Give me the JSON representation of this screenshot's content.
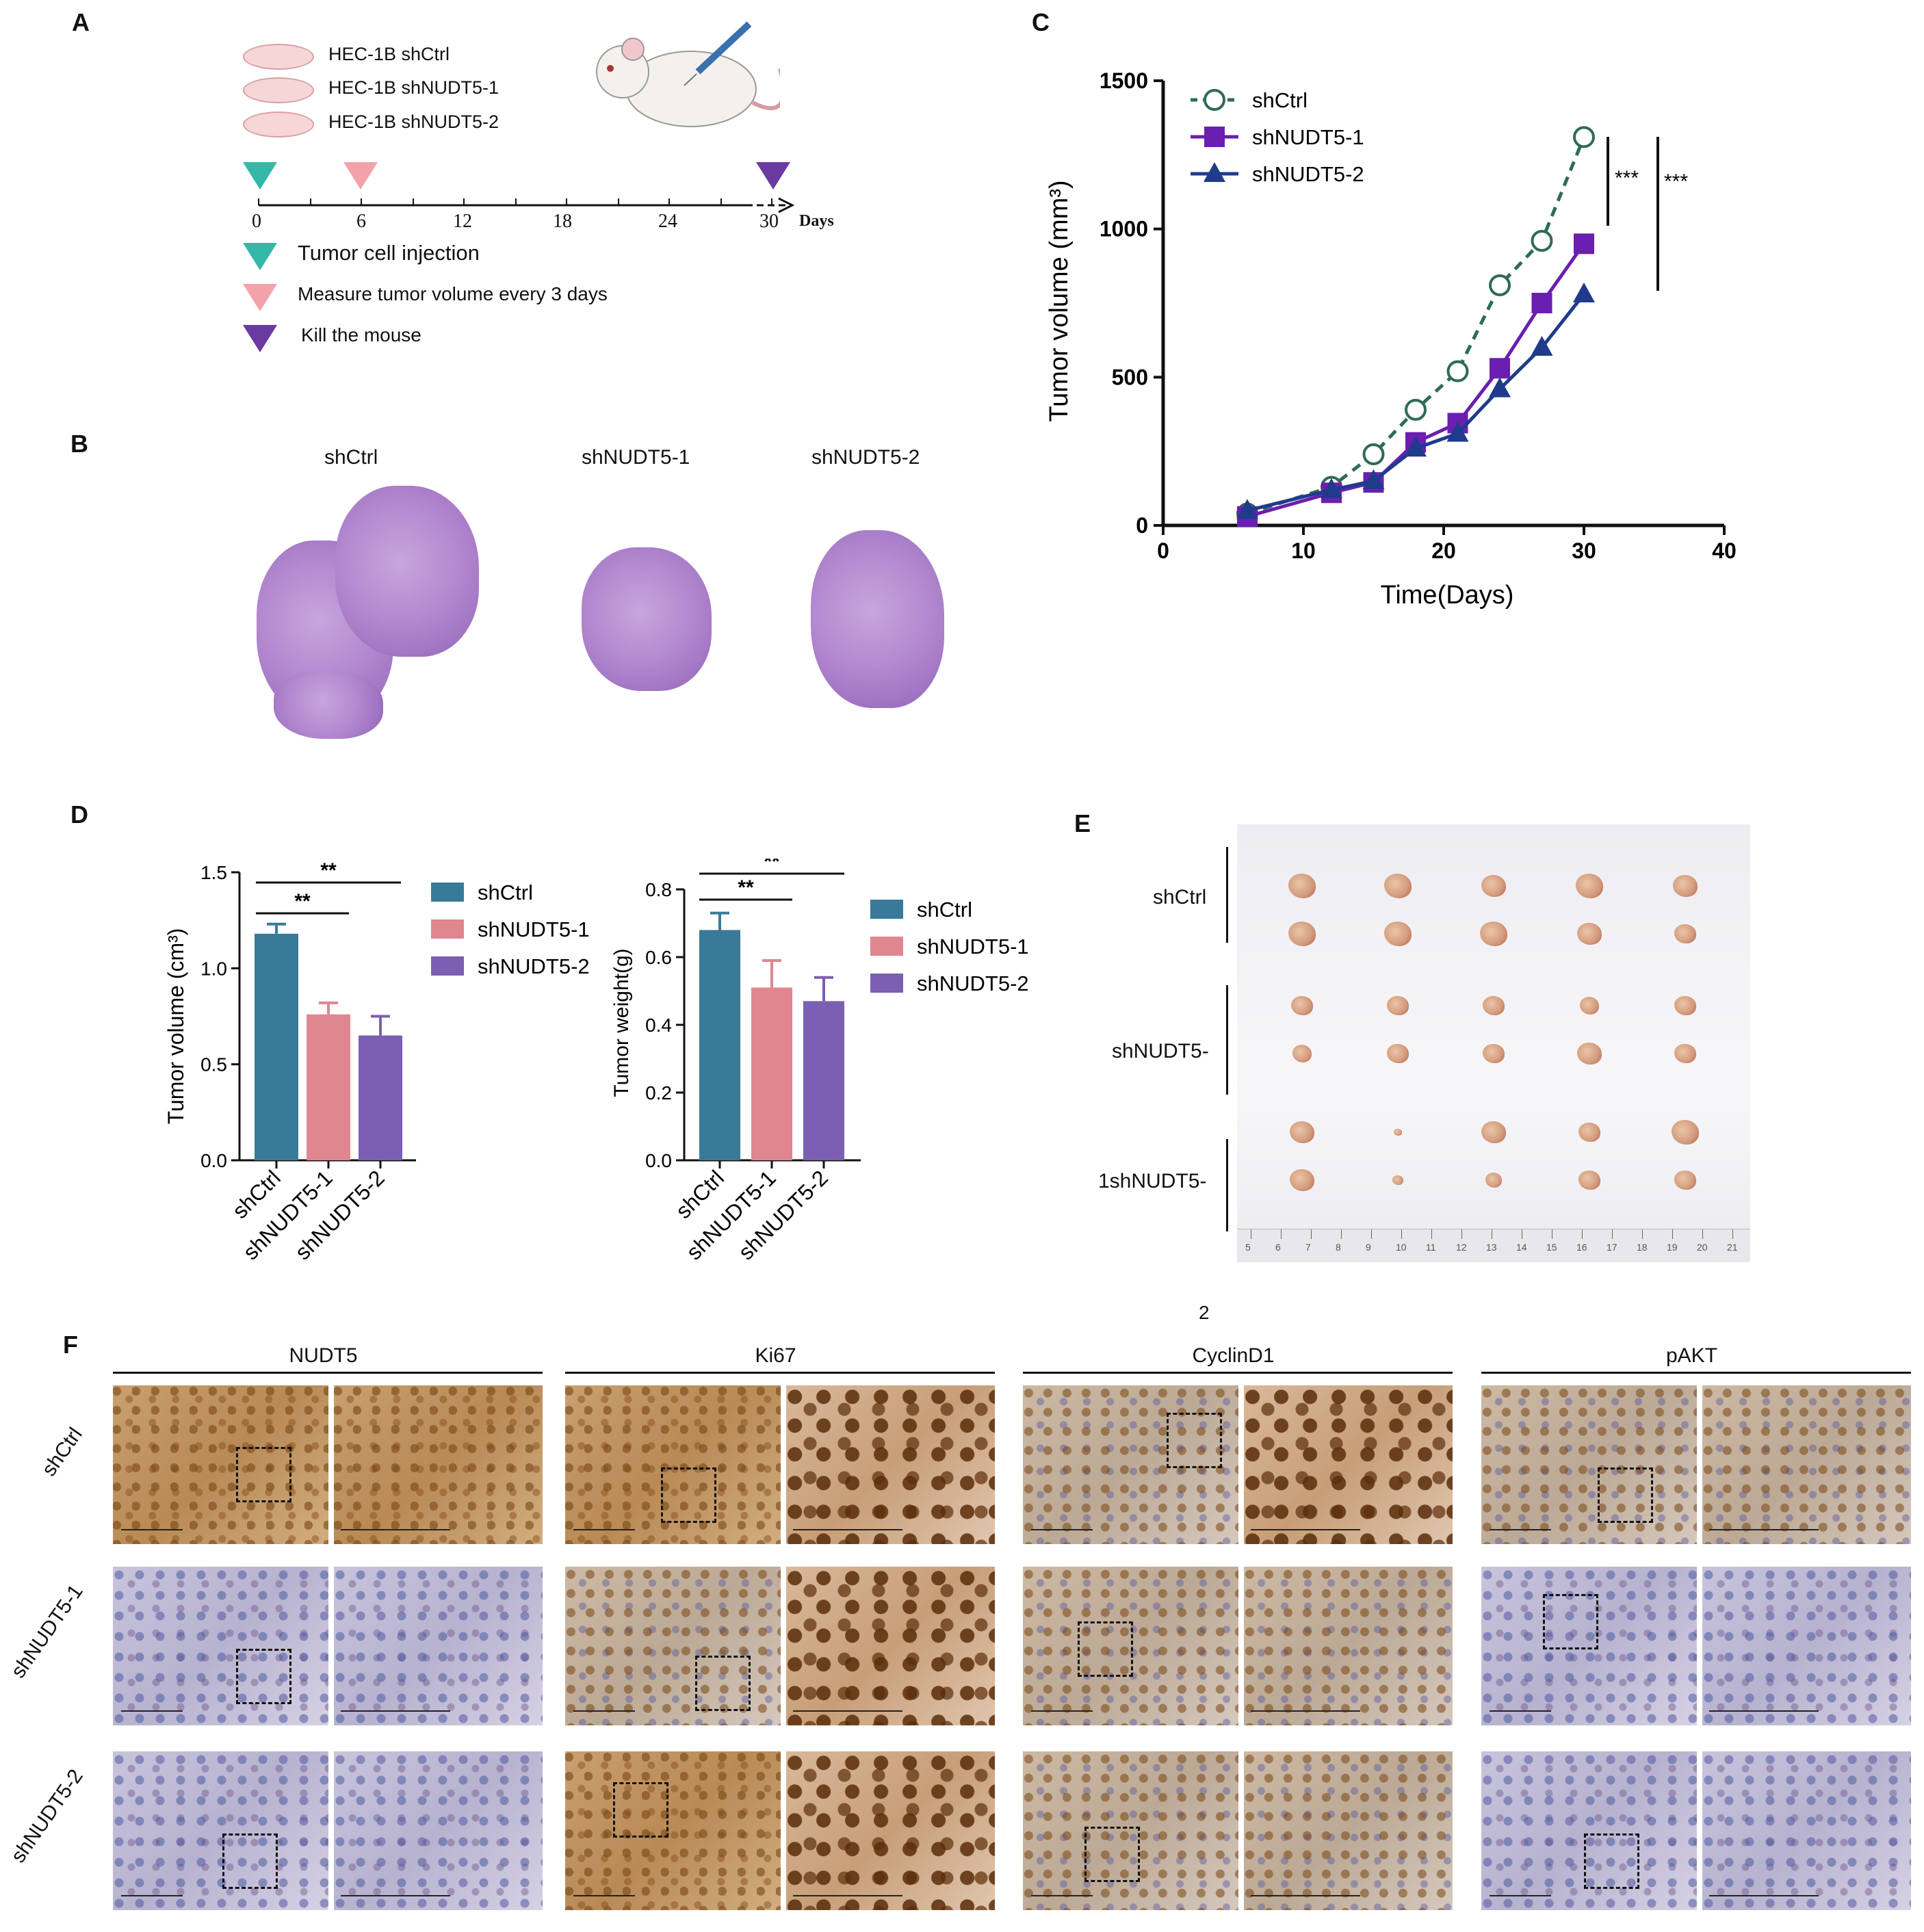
{
  "panels": {
    "a": "A",
    "b": "B",
    "c": "C",
    "d": "D",
    "e": "E",
    "f": "F"
  },
  "panel_a": {
    "cell_lines": [
      "HEC-1B shCtrl",
      "HEC-1B shNUDT5-1",
      "HEC-1B shNUDT5-2"
    ],
    "timeline_ticks": [
      "0",
      "6",
      "12",
      "18",
      "24",
      "30"
    ],
    "timeline_unit": "Days",
    "legend": [
      "Tumor cell injection",
      "Measure tumor volume every 3 days",
      "Kill the mouse"
    ],
    "colors": {
      "teal": "#35b8a7",
      "pink": "#f2a2a8",
      "purple": "#6a3aa0"
    }
  },
  "panel_b": {
    "labels": [
      "shCtrl",
      "shNUDT5-1",
      "shNUDT5-2"
    ]
  },
  "panel_c": {
    "chart_data": {
      "type": "line",
      "xlabel": "Time(Days)",
      "ylabel": "Tumor volume (mm³)",
      "xlim": [
        0,
        40
      ],
      "ylim": [
        0,
        1500
      ],
      "xticks": [
        "0",
        "10",
        "20",
        "30",
        "40"
      ],
      "yticks": [
        "0",
        "500",
        "1000",
        "1500"
      ],
      "legend_position": "top-left",
      "significance": [
        "***",
        "***"
      ],
      "series": [
        {
          "name": "shCtrl",
          "color": "#2f6b55",
          "marker": "open-circle",
          "dashed": true,
          "x": [
            6,
            12,
            15,
            18,
            21,
            24,
            27,
            30
          ],
          "y": [
            40,
            130,
            240,
            390,
            520,
            810,
            960,
            1310
          ]
        },
        {
          "name": "shNUDT5-1",
          "color": "#6a1fb0",
          "marker": "square",
          "dashed": false,
          "x": [
            6,
            12,
            15,
            18,
            21,
            24,
            27,
            30
          ],
          "y": [
            30,
            110,
            145,
            280,
            345,
            530,
            750,
            950
          ]
        },
        {
          "name": "shNUDT5-2",
          "color": "#1f3b8c",
          "marker": "triangle",
          "dashed": false,
          "x": [
            6,
            12,
            15,
            18,
            21,
            24,
            27,
            30
          ],
          "y": [
            50,
            120,
            150,
            260,
            310,
            460,
            600,
            780
          ]
        }
      ]
    }
  },
  "panel_d": {
    "chart_data": [
      {
        "type": "bar",
        "ylabel": "Tumor volume (cm³)",
        "ylim": [
          0,
          1.5
        ],
        "yticks": [
          "0.0",
          "0.5",
          "1.0",
          "1.5"
        ],
        "categories": [
          "shCtrl",
          "shNUDT5-1",
          "shNUDT5-2"
        ],
        "values": [
          1.18,
          0.76,
          0.65
        ],
        "errors": [
          0.05,
          0.06,
          0.1
        ],
        "colors": [
          "#3a7a99",
          "#e0868f",
          "#7b5fb3"
        ],
        "significance": [
          "**",
          "**"
        ],
        "legend": [
          "shCtrl",
          "shNUDT5-1",
          "shNUDT5-2"
        ]
      },
      {
        "type": "bar",
        "ylabel": "Tumor weight(g)",
        "ylim": [
          0,
          0.8
        ],
        "yticks": [
          "0.0",
          "0.2",
          "0.4",
          "0.6",
          "0.8"
        ],
        "categories": [
          "shCtrl",
          "shNUDT5-1",
          "shNUDT5-2"
        ],
        "values": [
          0.68,
          0.51,
          0.47
        ],
        "errors": [
          0.05,
          0.08,
          0.07
        ],
        "colors": [
          "#3a7a99",
          "#e0868f",
          "#7b5fb3"
        ],
        "significance": [
          "**",
          "**"
        ],
        "legend": [
          "shCtrl",
          "shNUDT5-1",
          "shNUDT5-2"
        ]
      }
    ]
  },
  "panel_e": {
    "groups": [
      "shCtrl",
      "shNUDT5-",
      "1shNUDT5-"
    ],
    "ruler": [
      "5",
      "6",
      "7",
      "8",
      "9",
      "10",
      "11",
      "12",
      "13",
      "14",
      "15",
      "16",
      "17",
      "18",
      "19",
      "20",
      "21"
    ],
    "footnote": "2"
  },
  "panel_f": {
    "markers": [
      "NUDT5",
      "Ki67",
      "CyclinD1",
      "pAKT"
    ],
    "rows": [
      "shCtrl",
      "shNUDT5-1",
      "shNUDT5-2"
    ]
  }
}
